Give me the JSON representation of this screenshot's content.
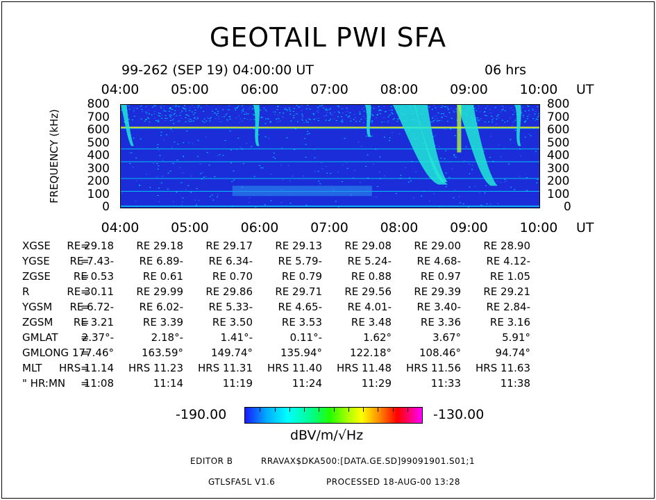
{
  "header": {
    "title": "GEOTAIL PWI SFA",
    "subtitle": "99-262 (SEP 19) 04:00:00 UT",
    "duration": "06 hrs"
  },
  "chart_data": {
    "type": "heatmap",
    "title": "GEOTAIL PWI SFA",
    "xlabel": "UT",
    "ylabel": "FREQUENCY (kHz)",
    "x_ticks": [
      "04:00",
      "05:00",
      "06:00",
      "07:00",
      "08:00",
      "09:00",
      "10:00"
    ],
    "y_ticks": [
      "0",
      "100",
      "200",
      "300",
      "400",
      "500",
      "600",
      "700",
      "800"
    ],
    "xlim": [
      4,
      10
    ],
    "ylim": [
      0,
      800
    ],
    "colorbar": {
      "min": "-190.00",
      "max": "-130.00",
      "unit": "dBV/m/√Hz"
    },
    "colors": {
      "background": "#1a2dd8",
      "band_line": "#00ffff",
      "line_600": "#ffff00",
      "feature": "#22e8d8"
    },
    "features": [
      {
        "name": "emission",
        "t_start": 4.0,
        "t_end": 4.15,
        "f_top": 800,
        "f_bottom": 480
      },
      {
        "name": "emission",
        "t_start": 5.9,
        "t_end": 5.95,
        "f_top": 800,
        "f_bottom": 480
      },
      {
        "name": "emission",
        "t_start": 7.5,
        "t_end": 7.55,
        "f_top": 800,
        "f_bottom": 550
      },
      {
        "name": "emission",
        "t_start": 7.9,
        "t_end": 8.55,
        "f_top": 800,
        "f_bottom": 180
      },
      {
        "name": "emission",
        "t_start": 8.2,
        "t_end": 8.6,
        "f_top": 800,
        "f_bottom": 200
      },
      {
        "name": "emission",
        "t_start": 8.82,
        "t_end": 9.3,
        "f_top": 800,
        "f_bottom": 170
      },
      {
        "name": "emission",
        "t_start": 9.65,
        "t_end": 9.7,
        "f_top": 800,
        "f_bottom": 480
      }
    ],
    "bands": [
      620,
      460,
      360,
      230,
      130
    ]
  },
  "table": {
    "rows": [
      {
        "name": "XGSE",
        "values": [
          "29.18 RE",
          "29.18 RE",
          "29.17 RE",
          "29.13 RE",
          "29.08 RE",
          "29.00 RE",
          "28.90 RE"
        ]
      },
      {
        "name": "YGSE",
        "values": [
          "-7.43 RE",
          "-6.89 RE",
          "-6.34 RE",
          "-5.79 RE",
          "-5.24 RE",
          "-4.68 RE",
          "-4.12 RE"
        ]
      },
      {
        "name": "ZGSE",
        "values": [
          "0.53 RE",
          "0.61 RE",
          "0.70 RE",
          "0.79 RE",
          "0.88 RE",
          "0.97 RE",
          "1.05 RE"
        ]
      },
      {
        "name": "R",
        "values": [
          "30.11 RE",
          "29.99 RE",
          "29.86 RE",
          "29.71 RE",
          "29.56 RE",
          "29.39 RE",
          "29.21 RE"
        ]
      },
      {
        "name": "YGSM",
        "values": [
          "-6.72 RE",
          "-6.02 RE",
          "-5.33 RE",
          "-4.65 RE",
          "-4.01 RE",
          "-3.40 RE",
          "-2.84 RE"
        ]
      },
      {
        "name": "ZGSM",
        "values": [
          "3.21 RE",
          "3.39 RE",
          "3.50 RE",
          "3.53 RE",
          "3.48 RE",
          "3.36 RE",
          "3.16 RE"
        ]
      },
      {
        "name": "GMLAT",
        "values": [
          "-2.37°",
          "-2.18°",
          "-1.41°",
          "-0.11°",
          "1.62°",
          "3.67°",
          "5.91°"
        ]
      },
      {
        "name": "GMLONG",
        "values": [
          "177.46°",
          "163.59°",
          "149.74°",
          "135.94°",
          "122.18°",
          "108.46°",
          "94.74°"
        ]
      },
      {
        "name": "MLT",
        "values": [
          "11.14 HRS",
          "11.23 HRS",
          "11.31 HRS",
          "11.40 HRS",
          "11.48 HRS",
          "11.56 HRS",
          "11.63 HRS"
        ]
      },
      {
        "name": "\" HR:MN",
        "values": [
          "11:08",
          "11:14",
          "11:19",
          "11:24",
          "11:29",
          "11:33",
          "11:38"
        ]
      }
    ]
  },
  "footer": {
    "line1_left": "EDITOR B",
    "line1_right": "RRAVAX$DKA500:[DATA.GE.SD]99091901.S01;1",
    "line2_left": "GTLSFA5L V1.6",
    "line2_right": "PROCESSED 18-AUG-00  13:28"
  }
}
